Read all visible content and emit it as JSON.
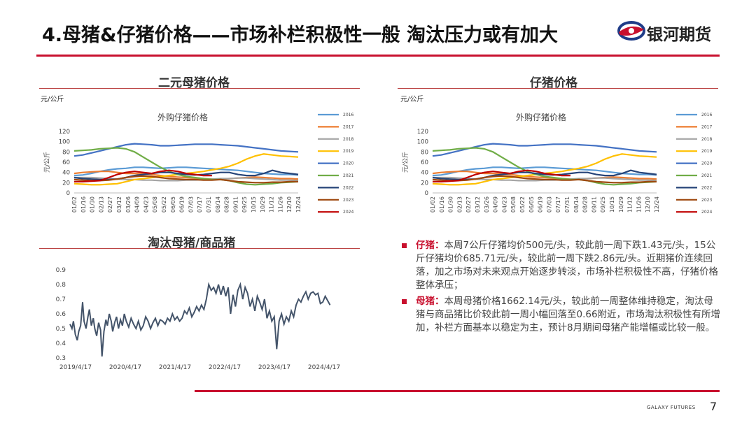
{
  "header": {
    "title": "4.母猪&仔猪价格——市场补栏积极性一般 淘汰压力或有加大",
    "logo_text": "银河期货",
    "accent": "#c8102e"
  },
  "panels": {
    "sow": {
      "title": "二元母猪价格",
      "unit": "元/公斤"
    },
    "piglet": {
      "title": "仔猪价格",
      "unit": "元/公斤"
    },
    "ratio": {
      "title": "淘汰母猪/商品猪"
    }
  },
  "chart_data": [
    {
      "type": "line",
      "title": "外购仔猪价格",
      "ylabel": "元/公斤",
      "ylim": [
        0,
        120
      ],
      "yticks": [
        0,
        20,
        40,
        60,
        80,
        100,
        120
      ],
      "x": [
        "01/02",
        "01/16",
        "01/30",
        "02/13",
        "02/27",
        "03/12",
        "03/26",
        "04/09",
        "04/23",
        "05/07",
        "05/21",
        "06/04",
        "06/18",
        "07/02",
        "07/16",
        "07/30",
        "08/13",
        "08/27",
        "09/10",
        "09/24",
        "10/08",
        "10/22",
        "11/05",
        "11/19",
        "12/03",
        "12/17",
        "12/31"
      ],
      "x_tick_labels": [
        "01/02",
        "01/16",
        "01/30",
        "02/13",
        "02/27",
        "03/12",
        "03/26",
        "04/09",
        "04/23",
        "05/08",
        "05/22",
        "06/05",
        "06/19",
        "07/03",
        "07/17",
        "07/31",
        "08/14",
        "08/28",
        "09/11",
        "09/25",
        "10/15",
        "10/29",
        "11/12",
        "11/26",
        "12/10",
        "12/24"
      ],
      "legend_position": "right",
      "series": [
        {
          "name": "2016",
          "color": "#5b9bd5",
          "values": [
            34,
            35,
            38,
            42,
            45,
            47,
            48,
            50,
            50,
            49,
            48,
            49,
            50,
            50,
            49,
            48,
            47,
            46,
            45,
            44,
            42,
            40,
            38,
            37,
            36,
            36,
            35
          ]
        },
        {
          "name": "2017",
          "color": "#ed7d31",
          "values": [
            38,
            40,
            41,
            42,
            42,
            40,
            38,
            38,
            37,
            36,
            34,
            32,
            31,
            30,
            29,
            28,
            27,
            27,
            28,
            29,
            30,
            31,
            30,
            29,
            28,
            28,
            27
          ]
        },
        {
          "name": "2018",
          "color": "#a5a5a5",
          "values": [
            30,
            30,
            30,
            29,
            28,
            27,
            26,
            26,
            25,
            25,
            24,
            24,
            24,
            25,
            25,
            26,
            27,
            28,
            28,
            29,
            29,
            28,
            27,
            26,
            25,
            25,
            24
          ]
        },
        {
          "name": "2019",
          "color": "#ffc000",
          "values": [
            18,
            17,
            16,
            16,
            17,
            18,
            22,
            26,
            28,
            30,
            32,
            34,
            36,
            38,
            40,
            42,
            45,
            48,
            52,
            58,
            66,
            72,
            76,
            74,
            72,
            71,
            70
          ]
        },
        {
          "name": "2020",
          "color": "#4472c4",
          "values": [
            72,
            74,
            78,
            82,
            86,
            90,
            94,
            96,
            95,
            94,
            92,
            92,
            93,
            94,
            95,
            95,
            95,
            94,
            93,
            92,
            90,
            88,
            86,
            84,
            82,
            81,
            80
          ]
        },
        {
          "name": "2021",
          "color": "#70ad47",
          "values": [
            82,
            83,
            84,
            86,
            87,
            88,
            86,
            80,
            70,
            60,
            50,
            42,
            36,
            32,
            30,
            28,
            26,
            26,
            24,
            20,
            17,
            16,
            17,
            18,
            20,
            21,
            22
          ]
        },
        {
          "name": "2022",
          "color": "#264478",
          "values": [
            30,
            28,
            27,
            26,
            26,
            27,
            30,
            34,
            36,
            38,
            40,
            40,
            38,
            36,
            35,
            36,
            38,
            40,
            40,
            36,
            34,
            34,
            38,
            44,
            40,
            38,
            36
          ]
        },
        {
          "name": "2023",
          "color": "#9e480e",
          "values": [
            26,
            25,
            24,
            24,
            25,
            27,
            30,
            32,
            33,
            32,
            30,
            28,
            27,
            26,
            26,
            25,
            25,
            26,
            24,
            22,
            21,
            20,
            20,
            21,
            21,
            22,
            22
          ]
        },
        {
          "name": "2024",
          "color": "#c00000",
          "values": [
            22,
            22,
            23,
            24,
            30,
            36,
            40,
            42,
            40,
            38,
            42,
            44,
            42,
            38,
            36,
            34,
            34,
            null,
            null,
            null,
            null,
            null,
            null,
            null,
            null,
            null,
            null
          ]
        }
      ]
    },
    {
      "type": "line",
      "title": "外购仔猪价格",
      "ylabel": "元/公斤",
      "ylim": [
        0,
        120
      ],
      "yticks": [
        0,
        20,
        40,
        60,
        80,
        100,
        120
      ],
      "x": [
        "01/02",
        "01/16",
        "01/30",
        "02/13",
        "02/27",
        "03/12",
        "03/26",
        "04/09",
        "04/23",
        "05/07",
        "05/21",
        "06/04",
        "06/18",
        "07/02",
        "07/16",
        "07/30",
        "08/13",
        "08/27",
        "09/10",
        "09/24",
        "10/08",
        "10/22",
        "11/05",
        "11/19",
        "12/03",
        "12/17",
        "12/31"
      ],
      "x_tick_labels": [
        "01/02",
        "01/16",
        "01/30",
        "02/13",
        "02/27",
        "03/12",
        "03/26",
        "04/09",
        "04/23",
        "05/08",
        "05/22",
        "06/05",
        "06/19",
        "07/03",
        "07/17",
        "07/31",
        "08/14",
        "08/28",
        "09/11",
        "09/25",
        "10/15",
        "10/29",
        "11/12",
        "11/26",
        "12/10",
        "12/24"
      ],
      "legend_position": "right",
      "series": [
        {
          "name": "2016",
          "color": "#5b9bd5",
          "values": [
            34,
            35,
            38,
            42,
            45,
            47,
            48,
            50,
            50,
            49,
            48,
            49,
            50,
            50,
            49,
            48,
            47,
            46,
            45,
            44,
            42,
            40,
            38,
            37,
            36,
            36,
            35
          ]
        },
        {
          "name": "2017",
          "color": "#ed7d31",
          "values": [
            38,
            40,
            41,
            42,
            42,
            40,
            38,
            38,
            37,
            36,
            34,
            32,
            31,
            30,
            29,
            28,
            27,
            27,
            28,
            29,
            30,
            31,
            30,
            29,
            28,
            28,
            27
          ]
        },
        {
          "name": "2018",
          "color": "#a5a5a5",
          "values": [
            30,
            30,
            30,
            29,
            28,
            27,
            26,
            26,
            25,
            25,
            24,
            24,
            24,
            25,
            25,
            26,
            27,
            28,
            28,
            29,
            29,
            28,
            27,
            26,
            25,
            25,
            24
          ]
        },
        {
          "name": "2019",
          "color": "#ffc000",
          "values": [
            18,
            17,
            16,
            16,
            17,
            18,
            22,
            26,
            28,
            30,
            32,
            34,
            36,
            38,
            40,
            42,
            45,
            48,
            52,
            58,
            66,
            72,
            76,
            74,
            72,
            71,
            70
          ]
        },
        {
          "name": "2020",
          "color": "#4472c4",
          "values": [
            72,
            74,
            78,
            82,
            86,
            90,
            94,
            96,
            95,
            94,
            92,
            92,
            93,
            94,
            95,
            95,
            95,
            94,
            93,
            92,
            90,
            88,
            86,
            84,
            82,
            81,
            80
          ]
        },
        {
          "name": "2021",
          "color": "#70ad47",
          "values": [
            82,
            83,
            84,
            86,
            87,
            88,
            86,
            80,
            70,
            60,
            50,
            42,
            36,
            32,
            30,
            28,
            26,
            26,
            24,
            20,
            17,
            16,
            17,
            18,
            20,
            21,
            22
          ]
        },
        {
          "name": "2022",
          "color": "#264478",
          "values": [
            30,
            28,
            27,
            26,
            26,
            27,
            30,
            34,
            36,
            38,
            40,
            40,
            38,
            36,
            35,
            36,
            38,
            40,
            40,
            36,
            34,
            34,
            38,
            44,
            40,
            38,
            36
          ]
        },
        {
          "name": "2023",
          "color": "#9e480e",
          "values": [
            26,
            25,
            24,
            24,
            25,
            27,
            30,
            32,
            33,
            32,
            30,
            28,
            27,
            26,
            26,
            25,
            25,
            26,
            24,
            22,
            21,
            20,
            20,
            21,
            21,
            22,
            22
          ]
        },
        {
          "name": "2024",
          "color": "#c00000",
          "values": [
            22,
            22,
            23,
            24,
            30,
            36,
            40,
            42,
            40,
            38,
            42,
            44,
            42,
            38,
            36,
            34,
            34,
            null,
            null,
            null,
            null,
            null,
            null,
            null,
            null,
            null,
            null
          ]
        }
      ]
    },
    {
      "type": "line",
      "title": "",
      "ylim": [
        0.3,
        0.9
      ],
      "yticks": [
        0.3,
        0.4,
        0.5,
        0.6,
        0.7,
        0.8,
        0.9
      ],
      "x_tick_labels": [
        "2019/4/17",
        "2020/4/17",
        "2021/4/17",
        "2022/4/17",
        "2023/4/17",
        "2024/4/17"
      ],
      "x_range": [
        2019.29,
        2024.83
      ],
      "series": [
        {
          "name": "",
          "color": "#44546a",
          "x": [
            2019.29,
            2019.33,
            2019.36,
            2019.4,
            2019.44,
            2019.47,
            2019.51,
            2019.55,
            2019.58,
            2019.62,
            2019.66,
            2019.69,
            2019.73,
            2019.77,
            2019.8,
            2019.84,
            2019.88,
            2019.92,
            2019.95,
            2019.99,
            2020.03,
            2020.06,
            2020.1,
            2020.14,
            2020.17,
            2020.21,
            2020.25,
            2020.29,
            2020.33,
            2020.37,
            2020.41,
            2020.45,
            2020.5,
            2020.55,
            2020.6,
            2020.65,
            2020.7,
            2020.75,
            2020.8,
            2020.85,
            2020.9,
            2020.95,
            2021.0,
            2021.05,
            2021.1,
            2021.15,
            2021.2,
            2021.25,
            2021.3,
            2021.35,
            2021.4,
            2021.45,
            2021.5,
            2021.55,
            2021.6,
            2021.65,
            2021.7,
            2021.75,
            2021.8,
            2021.85,
            2021.9,
            2021.95,
            2022.0,
            2022.05,
            2022.1,
            2022.15,
            2022.2,
            2022.25,
            2022.3,
            2022.35,
            2022.4,
            2022.45,
            2022.5,
            2022.55,
            2022.6,
            2022.65,
            2022.7,
            2022.75,
            2022.8,
            2022.85,
            2022.9,
            2022.95,
            2023.0,
            2023.05,
            2023.1,
            2023.15,
            2023.2,
            2023.25,
            2023.3,
            2023.35,
            2023.4,
            2023.45,
            2023.5,
            2023.55,
            2023.6,
            2023.65,
            2023.7,
            2023.75,
            2023.8,
            2023.85,
            2023.9,
            2023.95,
            2024.0,
            2024.05,
            2024.1,
            2024.15,
            2024.2,
            2024.25,
            2024.3,
            2024.35,
            2024.4,
            2024.45,
            2024.5,
            2024.55,
            2024.6,
            2024.65
          ],
          "values": [
            0.53,
            0.5,
            0.55,
            0.46,
            0.42,
            0.48,
            0.52,
            0.68,
            0.55,
            0.5,
            0.58,
            0.63,
            0.52,
            0.57,
            0.5,
            0.45,
            0.54,
            0.49,
            0.31,
            0.48,
            0.56,
            0.52,
            0.6,
            0.55,
            0.48,
            0.54,
            0.58,
            0.5,
            0.56,
            0.52,
            0.6,
            0.55,
            0.51,
            0.57,
            0.53,
            0.5,
            0.55,
            0.49,
            0.52,
            0.58,
            0.55,
            0.5,
            0.54,
            0.57,
            0.52,
            0.56,
            0.55,
            0.53,
            0.57,
            0.55,
            0.6,
            0.56,
            0.58,
            0.55,
            0.57,
            0.62,
            0.6,
            0.64,
            0.58,
            0.61,
            0.65,
            0.62,
            0.66,
            0.63,
            0.7,
            0.8,
            0.76,
            0.78,
            0.74,
            0.8,
            0.73,
            0.79,
            0.72,
            0.78,
            0.6,
            0.73,
            0.65,
            0.76,
            0.8,
            0.7,
            0.78,
            0.74,
            0.65,
            0.7,
            0.62,
            0.72,
            0.68,
            0.63,
            0.7,
            0.57,
            0.62,
            0.55,
            0.58,
            0.36,
            0.55,
            0.6,
            0.53,
            0.58,
            0.55,
            0.62,
            0.58,
            0.66,
            0.7,
            0.68,
            0.72,
            0.75,
            0.7,
            0.74,
            0.75,
            0.73,
            0.74,
            0.67,
            0.68,
            0.72,
            0.69,
            0.66
          ]
        }
      ]
    }
  ],
  "bullets": [
    {
      "label": "仔猪：",
      "text": "本周7公斤仔猪均价500元/头，较此前一周下跌1.43元/头，15公斤仔猪均价685.71元/头，较此前一周下跌2.86元/头。近期猪价连续回落，加之市场对未来观点开始逐步转淡，市场补栏积极性不高，仔猪价格整体承压；"
    },
    {
      "label": "母猪：",
      "text": "本周母猪价格1662.14元/头，较此前一周整体维持稳定，淘汰母猪与商品猪比价较此前一周小幅回落至0.66附近，市场淘汰积极性有所增加，补栏方面基本以稳定为主，预计8月期间母猪产能增幅或比较一般。"
    }
  ],
  "footer": {
    "brand": "GALAXY FUTURES",
    "page": "7"
  }
}
